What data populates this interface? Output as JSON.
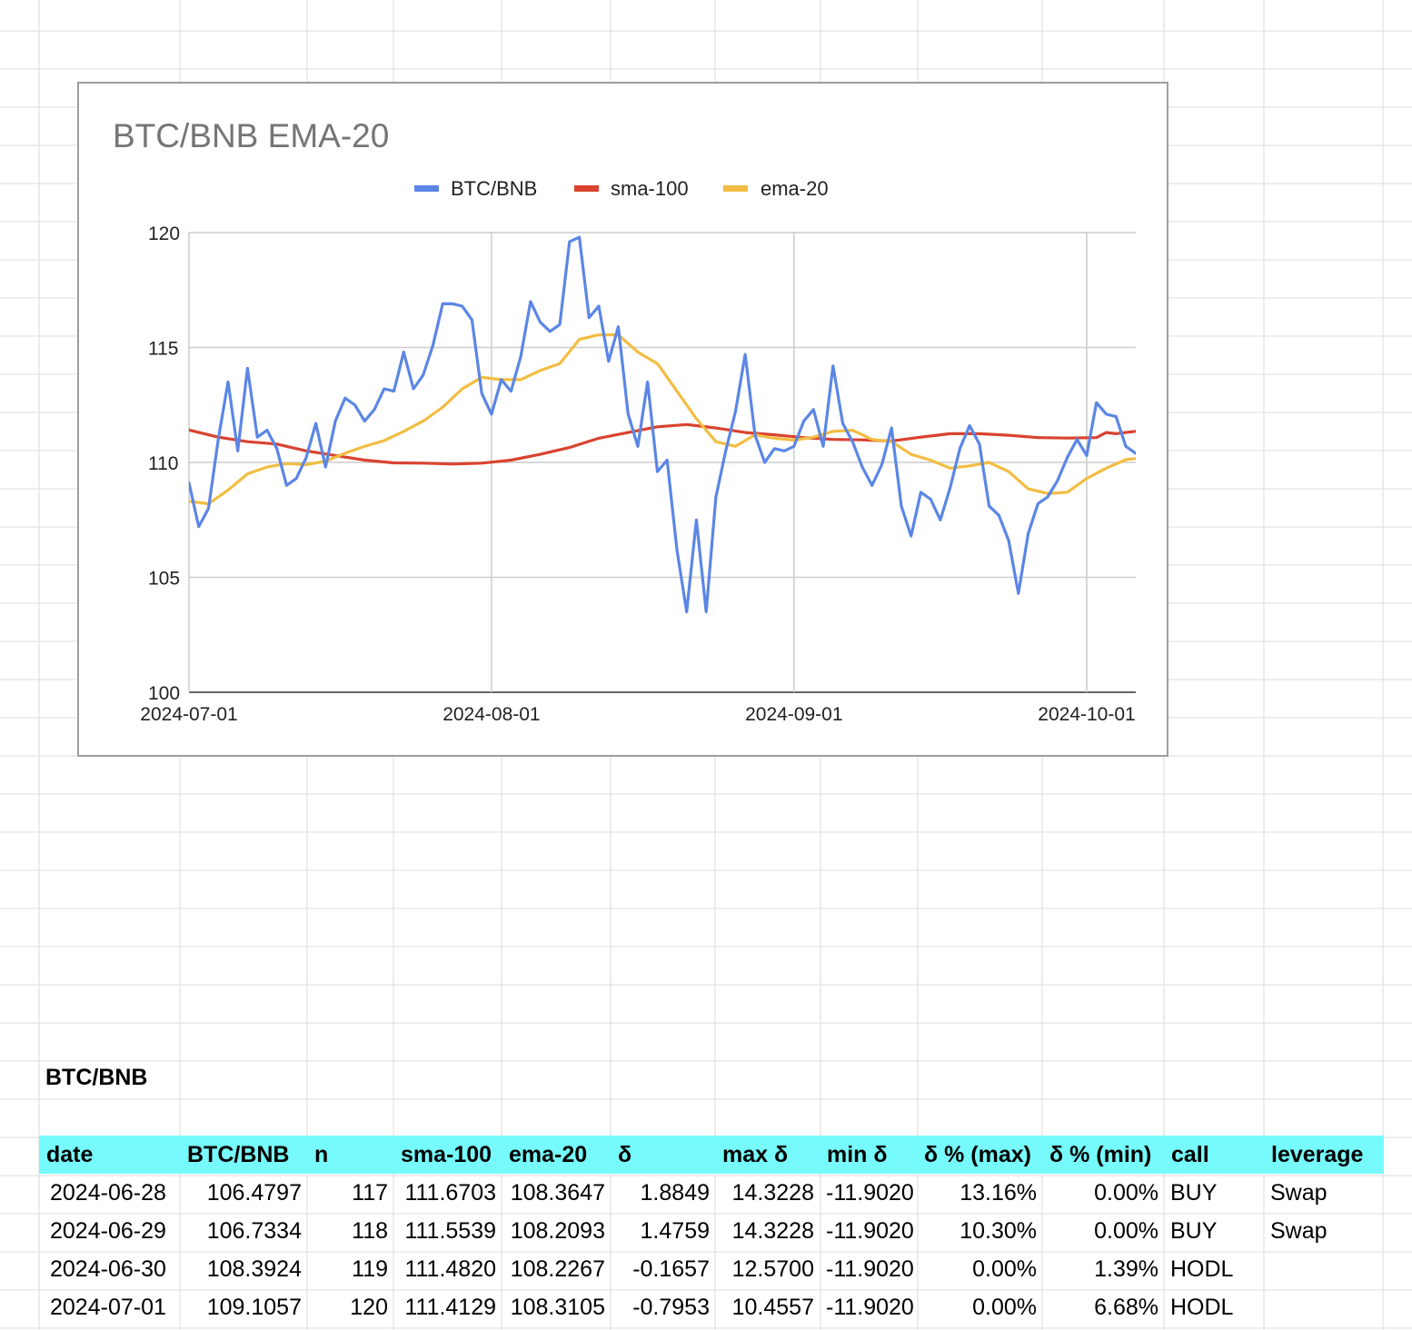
{
  "chart": {
    "title": "BTC/BNB EMA-20",
    "legend": [
      {
        "label": "BTC/BNB",
        "color": "#5b86e5"
      },
      {
        "label": "sma-100",
        "color": "#d9432f"
      },
      {
        "label": "ema-20",
        "color": "#f2bd42"
      }
    ]
  },
  "chart_data": {
    "type": "line",
    "title": "BTC/BNB EMA-20",
    "ylim": [
      100,
      120
    ],
    "yticks": [
      "100",
      "105",
      "110",
      "115",
      "120"
    ],
    "xlim": [
      "2024-06-28",
      "2024-10-05"
    ],
    "xticks": [
      {
        "label": "2024-07-01",
        "date": "2024-07-01"
      },
      {
        "label": "2024-08-01",
        "date": "2024-08-01"
      },
      {
        "label": "2024-09-01",
        "date": "2024-09-01"
      },
      {
        "label": "2024-10-01",
        "date": "2024-10-01"
      }
    ],
    "grid": true,
    "legend_position": "top",
    "series": [
      {
        "name": "BTC/BNB",
        "color": "#5b86e5",
        "points": [
          [
            "2024-06-28",
            106.48
          ],
          [
            "2024-06-29",
            106.73
          ],
          [
            "2024-06-30",
            108.39
          ],
          [
            "2024-07-01",
            109.11
          ],
          [
            "2024-07-02",
            107.2
          ],
          [
            "2024-07-03",
            108.0
          ],
          [
            "2024-07-04",
            111.0
          ],
          [
            "2024-07-05",
            113.5
          ],
          [
            "2024-07-06",
            110.5
          ],
          [
            "2024-07-07",
            114.1
          ],
          [
            "2024-07-08",
            111.1
          ],
          [
            "2024-07-09",
            111.4
          ],
          [
            "2024-07-10",
            110.6
          ],
          [
            "2024-07-11",
            109.0
          ],
          [
            "2024-07-12",
            109.3
          ],
          [
            "2024-07-13",
            110.2
          ],
          [
            "2024-07-14",
            111.7
          ],
          [
            "2024-07-15",
            109.8
          ],
          [
            "2024-07-16",
            111.8
          ],
          [
            "2024-07-17",
            112.8
          ],
          [
            "2024-07-18",
            112.5
          ],
          [
            "2024-07-19",
            111.8
          ],
          [
            "2024-07-20",
            112.3
          ],
          [
            "2024-07-21",
            113.2
          ],
          [
            "2024-07-22",
            113.1
          ],
          [
            "2024-07-23",
            114.8
          ],
          [
            "2024-07-24",
            113.2
          ],
          [
            "2024-07-25",
            113.8
          ],
          [
            "2024-07-26",
            115.1
          ],
          [
            "2024-07-27",
            116.9
          ],
          [
            "2024-07-28",
            116.9
          ],
          [
            "2024-07-29",
            116.8
          ],
          [
            "2024-07-30",
            116.2
          ],
          [
            "2024-07-31",
            113.0
          ],
          [
            "2024-08-01",
            112.1
          ],
          [
            "2024-08-02",
            113.6
          ],
          [
            "2024-08-03",
            113.1
          ],
          [
            "2024-08-04",
            114.6
          ],
          [
            "2024-08-05",
            117.0
          ],
          [
            "2024-08-06",
            116.1
          ],
          [
            "2024-08-07",
            115.7
          ],
          [
            "2024-08-08",
            116.0
          ],
          [
            "2024-08-09",
            119.6
          ],
          [
            "2024-08-10",
            119.8
          ],
          [
            "2024-08-11",
            116.3
          ],
          [
            "2024-08-12",
            116.8
          ],
          [
            "2024-08-13",
            114.4
          ],
          [
            "2024-08-14",
            115.9
          ],
          [
            "2024-08-15",
            112.1
          ],
          [
            "2024-08-16",
            110.7
          ],
          [
            "2024-08-17",
            113.5
          ],
          [
            "2024-08-18",
            109.6
          ],
          [
            "2024-08-19",
            110.1
          ],
          [
            "2024-08-20",
            106.2
          ],
          [
            "2024-08-21",
            103.5
          ],
          [
            "2024-08-22",
            107.5
          ],
          [
            "2024-08-23",
            103.5
          ],
          [
            "2024-08-24",
            108.5
          ],
          [
            "2024-08-25",
            110.5
          ],
          [
            "2024-08-26",
            112.2
          ],
          [
            "2024-08-27",
            114.7
          ],
          [
            "2024-08-28",
            111.2
          ],
          [
            "2024-08-29",
            110.0
          ],
          [
            "2024-08-30",
            110.6
          ],
          [
            "2024-08-31",
            110.5
          ],
          [
            "2024-09-01",
            110.7
          ],
          [
            "2024-09-02",
            111.8
          ],
          [
            "2024-09-03",
            112.3
          ],
          [
            "2024-09-04",
            110.7
          ],
          [
            "2024-09-05",
            114.2
          ],
          [
            "2024-09-06",
            111.7
          ],
          [
            "2024-09-07",
            110.9
          ],
          [
            "2024-09-08",
            109.8
          ],
          [
            "2024-09-09",
            109.0
          ],
          [
            "2024-09-10",
            109.9
          ],
          [
            "2024-09-11",
            111.5
          ],
          [
            "2024-09-12",
            108.1
          ],
          [
            "2024-09-13",
            106.8
          ],
          [
            "2024-09-14",
            108.7
          ],
          [
            "2024-09-15",
            108.4
          ],
          [
            "2024-09-16",
            107.5
          ],
          [
            "2024-09-17",
            108.9
          ],
          [
            "2024-09-18",
            110.6
          ],
          [
            "2024-09-19",
            111.6
          ],
          [
            "2024-09-20",
            110.8
          ],
          [
            "2024-09-21",
            108.1
          ],
          [
            "2024-09-22",
            107.7
          ],
          [
            "2024-09-23",
            106.6
          ],
          [
            "2024-09-24",
            104.3
          ],
          [
            "2024-09-25",
            106.9
          ],
          [
            "2024-09-26",
            108.2
          ],
          [
            "2024-09-27",
            108.5
          ],
          [
            "2024-09-28",
            109.2
          ],
          [
            "2024-09-29",
            110.2
          ],
          [
            "2024-09-30",
            111.0
          ],
          [
            "2024-10-01",
            110.3
          ],
          [
            "2024-10-02",
            112.6
          ],
          [
            "2024-10-03",
            112.1
          ],
          [
            "2024-10-04",
            112.0
          ],
          [
            "2024-10-05",
            110.7
          ],
          [
            "2024-10-06",
            110.4
          ]
        ]
      },
      {
        "name": "sma-100",
        "color": "#d9432f",
        "points": [
          [
            "2024-06-28",
            111.67
          ],
          [
            "2024-06-29",
            111.55
          ],
          [
            "2024-06-30",
            111.48
          ],
          [
            "2024-07-01",
            111.41
          ],
          [
            "2024-07-04",
            111.1
          ],
          [
            "2024-07-07",
            110.9
          ],
          [
            "2024-07-10",
            110.8
          ],
          [
            "2024-07-13",
            110.5
          ],
          [
            "2024-07-16",
            110.3
          ],
          [
            "2024-07-19",
            110.1
          ],
          [
            "2024-07-22",
            109.98
          ],
          [
            "2024-07-25",
            109.97
          ],
          [
            "2024-07-28",
            109.93
          ],
          [
            "2024-07-31",
            109.97
          ],
          [
            "2024-08-03",
            110.1
          ],
          [
            "2024-08-06",
            110.35
          ],
          [
            "2024-08-09",
            110.65
          ],
          [
            "2024-08-12",
            111.05
          ],
          [
            "2024-08-15",
            111.3
          ],
          [
            "2024-08-18",
            111.55
          ],
          [
            "2024-08-21",
            111.65
          ],
          [
            "2024-08-24",
            111.5
          ],
          [
            "2024-08-27",
            111.3
          ],
          [
            "2024-08-30",
            111.2
          ],
          [
            "2024-09-02",
            111.08
          ],
          [
            "2024-09-05",
            111.0
          ],
          [
            "2024-09-08",
            110.98
          ],
          [
            "2024-09-11",
            110.93
          ],
          [
            "2024-09-14",
            111.1
          ],
          [
            "2024-09-17",
            111.25
          ],
          [
            "2024-09-20",
            111.25
          ],
          [
            "2024-09-23",
            111.18
          ],
          [
            "2024-09-26",
            111.08
          ],
          [
            "2024-09-29",
            111.06
          ],
          [
            "2024-10-02",
            111.08
          ],
          [
            "2024-10-03",
            111.3
          ],
          [
            "2024-10-04",
            111.25
          ],
          [
            "2024-10-06",
            111.35
          ]
        ]
      },
      {
        "name": "ema-20",
        "color": "#f2bd42",
        "points": [
          [
            "2024-06-28",
            108.36
          ],
          [
            "2024-06-29",
            108.21
          ],
          [
            "2024-06-30",
            108.23
          ],
          [
            "2024-07-01",
            108.31
          ],
          [
            "2024-07-03",
            108.2
          ],
          [
            "2024-07-05",
            108.8
          ],
          [
            "2024-07-07",
            109.5
          ],
          [
            "2024-07-09",
            109.8
          ],
          [
            "2024-07-11",
            109.95
          ],
          [
            "2024-07-13",
            109.9
          ],
          [
            "2024-07-15",
            110.05
          ],
          [
            "2024-07-17",
            110.4
          ],
          [
            "2024-07-19",
            110.7
          ],
          [
            "2024-07-21",
            110.95
          ],
          [
            "2024-07-23",
            111.35
          ],
          [
            "2024-07-25",
            111.8
          ],
          [
            "2024-07-27",
            112.4
          ],
          [
            "2024-07-29",
            113.2
          ],
          [
            "2024-07-31",
            113.7
          ],
          [
            "2024-08-02",
            113.6
          ],
          [
            "2024-08-04",
            113.6
          ],
          [
            "2024-08-06",
            114.0
          ],
          [
            "2024-08-08",
            114.3
          ],
          [
            "2024-08-10",
            115.35
          ],
          [
            "2024-08-12",
            115.55
          ],
          [
            "2024-08-14",
            115.55
          ],
          [
            "2024-08-16",
            114.8
          ],
          [
            "2024-08-18",
            114.3
          ],
          [
            "2024-08-20",
            113.1
          ],
          [
            "2024-08-22",
            111.9
          ],
          [
            "2024-08-24",
            110.9
          ],
          [
            "2024-08-26",
            110.7
          ],
          [
            "2024-08-28",
            111.2
          ],
          [
            "2024-08-30",
            111.05
          ],
          [
            "2024-09-01",
            110.97
          ],
          [
            "2024-09-03",
            111.1
          ],
          [
            "2024-09-05",
            111.35
          ],
          [
            "2024-09-07",
            111.4
          ],
          [
            "2024-09-09",
            111.0
          ],
          [
            "2024-09-11",
            110.9
          ],
          [
            "2024-09-13",
            110.35
          ],
          [
            "2024-09-15",
            110.1
          ],
          [
            "2024-09-17",
            109.75
          ],
          [
            "2024-09-19",
            109.85
          ],
          [
            "2024-09-21",
            110.0
          ],
          [
            "2024-09-23",
            109.6
          ],
          [
            "2024-09-25",
            108.85
          ],
          [
            "2024-09-27",
            108.65
          ],
          [
            "2024-09-29",
            108.7
          ],
          [
            "2024-10-01",
            109.3
          ],
          [
            "2024-10-03",
            109.75
          ],
          [
            "2024-10-05",
            110.12
          ],
          [
            "2024-10-06",
            110.17
          ]
        ]
      }
    ]
  },
  "sheet": {
    "section_title": "BTC/BNB",
    "headers": [
      "date",
      "BTC/BNB",
      "n",
      "sma-100",
      "ema-20",
      "δ",
      "max δ",
      "min δ",
      "δ % (max)",
      "δ % (min)",
      "call",
      "leverage"
    ],
    "rows": [
      [
        "2024-06-28",
        "106.4797",
        "117",
        "111.6703",
        "108.3647",
        "1.8849",
        "14.3228",
        "-11.9020",
        "13.16%",
        "0.00%",
        "BUY",
        "Swap"
      ],
      [
        "2024-06-29",
        "106.7334",
        "118",
        "111.5539",
        "108.2093",
        "1.4759",
        "14.3228",
        "-11.9020",
        "10.30%",
        "0.00%",
        "BUY",
        "Swap"
      ],
      [
        "2024-06-30",
        "108.3924",
        "119",
        "111.4820",
        "108.2267",
        "-0.1657",
        "12.5700",
        "-11.9020",
        "0.00%",
        "1.39%",
        "HODL",
        ""
      ],
      [
        "2024-07-01",
        "109.1057",
        "120",
        "111.4129",
        "108.3105",
        "-0.7953",
        "10.4557",
        "-11.9020",
        "0.00%",
        "6.68%",
        "HODL",
        ""
      ]
    ]
  }
}
